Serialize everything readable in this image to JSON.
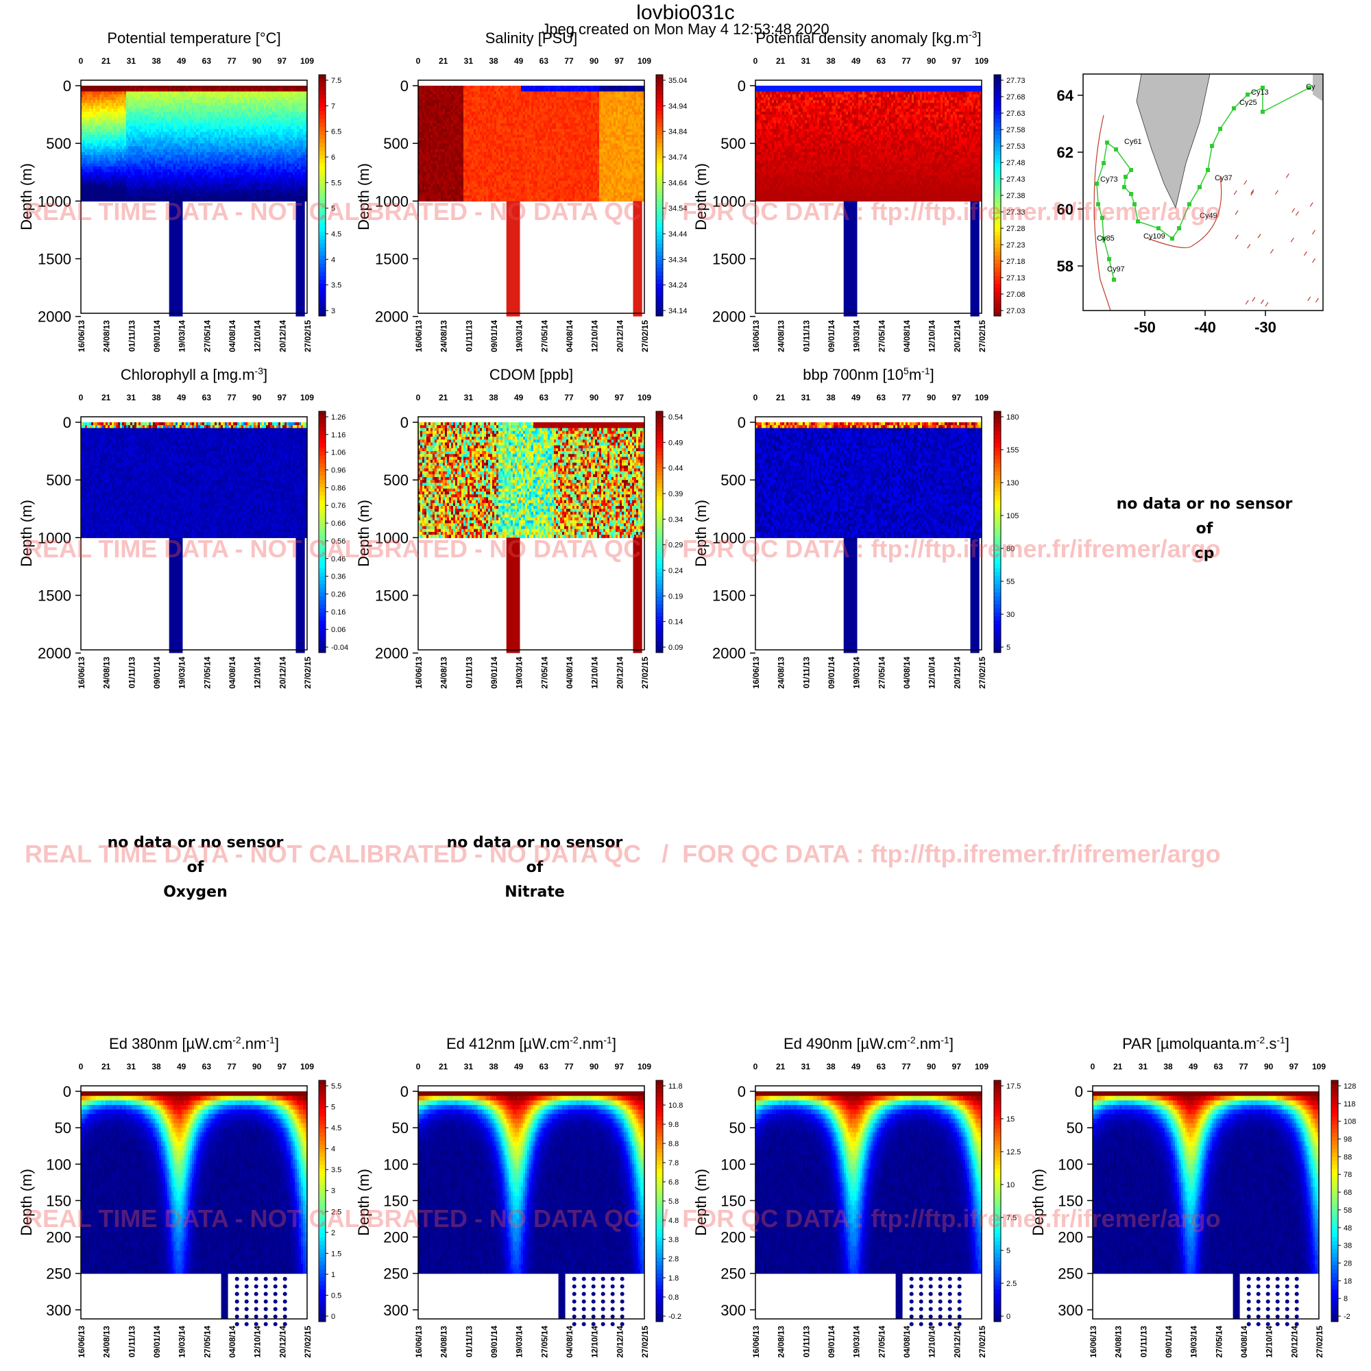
{
  "header": {
    "title": "lovbio031c",
    "subtitle": "Jpeg created on  Mon May  4 12:53:48 2020"
  },
  "watermark": "REAL TIME DATA - NOT CALIBRATED - NO DATA QC   /  FOR QC DATA : ftp://ftp.ifremer.fr/ifremer/argo",
  "axes_common": {
    "top_ticks": [
      "0",
      "21",
      "31",
      "38",
      "49",
      "63",
      "77",
      "90",
      "97",
      "109"
    ],
    "date_ticks": [
      "16/06/13",
      "24/08/13",
      "01/11/13",
      "09/01/14",
      "19/03/14",
      "27/05/14",
      "04/08/14",
      "12/10/14",
      "20/12/14",
      "27/02/15"
    ],
    "ylabel": "Depth (m)",
    "deep_ticks": [
      "0",
      "500",
      "1000",
      "1500",
      "2000"
    ],
    "shallow_ticks": [
      "0",
      "50",
      "100",
      "150",
      "200",
      "250",
      "300"
    ]
  },
  "no_data": {
    "line1": "no data or no sensor",
    "line2": "of",
    "sensors": {
      "cp": "cp",
      "oxygen": "Oxygen",
      "nitrate": "Nitrate"
    }
  },
  "map": {
    "lat_ticks": [
      "64",
      "62",
      "60",
      "58"
    ],
    "lon_ticks": [
      "-50",
      "-40",
      "-30"
    ],
    "cycle_labels": [
      "Cy13",
      "Cy25",
      "Cy37",
      "Cy49",
      "Cy61",
      "Cy73",
      "Cy85",
      "Cy97",
      "Cy109",
      "Cy"
    ]
  },
  "colors": {
    "track": "#2ecc30",
    "land": "#bdbdbd",
    "coast_red": "#c0392b"
  },
  "chart_data": [
    {
      "type": "heatmap",
      "name": "Potential temperature",
      "title_html": "Potential temperature [°C]",
      "depth_max": 2000,
      "colorbar": [
        "7.5",
        "7",
        "6.5",
        "6",
        "5.5",
        "5",
        "4.5",
        "4",
        "3.5",
        "3"
      ],
      "colorbar_range": [
        3,
        7.8
      ],
      "colormap": "jet"
    },
    {
      "type": "heatmap",
      "name": "Salinity",
      "title_html": "Salinity [PSU]",
      "depth_max": 2000,
      "colorbar": [
        "35.04",
        "34.94",
        "34.84",
        "34.74",
        "34.64",
        "34.54",
        "34.44",
        "34.34",
        "34.24",
        "34.14"
      ],
      "colorbar_range": [
        34.14,
        35.04
      ],
      "colormap": "jet"
    },
    {
      "type": "heatmap",
      "name": "Potential density anomaly",
      "title_html": "Potential density anomaly [kg.m<tspan baseline-shift='super' font-size='14'>-3</tspan>]",
      "depth_max": 2000,
      "colorbar": [
        "27.73",
        "27.68",
        "27.63",
        "27.58",
        "27.53",
        "27.48",
        "27.43",
        "27.38",
        "27.33",
        "27.28",
        "27.23",
        "27.18",
        "27.13",
        "27.08",
        "27.03"
      ],
      "colorbar_range": [
        27.03,
        27.73
      ],
      "colormap": "jet_reversed"
    },
    {
      "type": "heatmap",
      "name": "Chlorophyll a",
      "title_html": "Chlorophyll a [mg.m<tspan baseline-shift='super' font-size='14'>-3</tspan>]",
      "depth_max": 2000,
      "colorbar": [
        "1.26",
        "1.16",
        "1.06",
        "0.96",
        "0.86",
        "0.76",
        "0.66",
        "0.56",
        "0.46",
        "0.36",
        "0.26",
        "0.16",
        "0.06",
        "-0.04"
      ],
      "colorbar_range": [
        -0.04,
        1.26
      ],
      "colormap": "jet"
    },
    {
      "type": "heatmap",
      "name": "CDOM",
      "title_html": "CDOM  [ppb]",
      "depth_max": 2000,
      "colorbar": [
        "0.54",
        "0.49",
        "0.44",
        "0.39",
        "0.34",
        "0.29",
        "0.24",
        "0.19",
        "0.14",
        "0.09"
      ],
      "colorbar_range": [
        0.09,
        0.54
      ],
      "colormap": "jet"
    },
    {
      "type": "heatmap",
      "name": "bbp 700nm",
      "title_html": "bbp 700nm [10<tspan baseline-shift='super' font-size='14'>5</tspan><tspan baseline-shift='0'>m</tspan><tspan baseline-shift='super' font-size='14'>-1</tspan>]",
      "depth_max": 2000,
      "colorbar": [
        "180",
        "155",
        "130",
        "105",
        "80",
        "55",
        "30",
        "5"
      ],
      "colorbar_range": [
        5,
        190
      ],
      "colormap": "jet"
    },
    {
      "type": "heatmap",
      "name": "Ed 380nm",
      "title_html": "Ed 380nm [µW.cm<tspan baseline-shift='super' font-size='14'>-2</tspan><tspan baseline-shift='0'>.nm</tspan><tspan baseline-shift='super' font-size='14'>-1</tspan>]",
      "depth_max": 300,
      "colorbar": [
        "5.5",
        "5",
        "4.5",
        "4",
        "3.5",
        "3",
        "2.5",
        "2",
        "1.5",
        "1",
        "0.5",
        "0"
      ],
      "colorbar_range": [
        0,
        5.7
      ],
      "colormap": "jet"
    },
    {
      "type": "heatmap",
      "name": "Ed 412nm",
      "title_html": "Ed 412nm [µW.cm<tspan baseline-shift='super' font-size='14'>-2</tspan><tspan baseline-shift='0'>.nm</tspan><tspan baseline-shift='super' font-size='14'>-1</tspan>]",
      "depth_max": 300,
      "colorbar": [
        "11.8",
        "10.8",
        "9.8",
        "8.8",
        "7.8",
        "6.8",
        "5.8",
        "4.8",
        "3.8",
        "2.8",
        "1.8",
        "0.8",
        "-0.2"
      ],
      "colorbar_range": [
        -0.2,
        12.2
      ],
      "colormap": "jet"
    },
    {
      "type": "heatmap",
      "name": "Ed 490nm",
      "title_html": "Ed 490nm [µW.cm<tspan baseline-shift='super' font-size='14'>-2</tspan><tspan baseline-shift='0'>.nm</tspan><tspan baseline-shift='super' font-size='14'>-1</tspan>]",
      "depth_max": 300,
      "colorbar": [
        "17.5",
        "15",
        "12.5",
        "10",
        "7.5",
        "5",
        "2.5",
        "0"
      ],
      "colorbar_range": [
        0,
        19
      ],
      "colormap": "jet"
    },
    {
      "type": "heatmap",
      "name": "PAR",
      "title_html": "PAR [µmolquanta.m<tspan baseline-shift='super' font-size='14'>-2</tspan><tspan baseline-shift='0'>.s</tspan><tspan baseline-shift='super' font-size='14'>-1</tspan>]",
      "depth_max": 300,
      "colorbar": [
        "128",
        "118",
        "108",
        "98",
        "88",
        "78",
        "68",
        "58",
        "48",
        "38",
        "28",
        "18",
        "8",
        "-2"
      ],
      "colorbar_range": [
        -2,
        130
      ],
      "colormap": "jet"
    }
  ]
}
